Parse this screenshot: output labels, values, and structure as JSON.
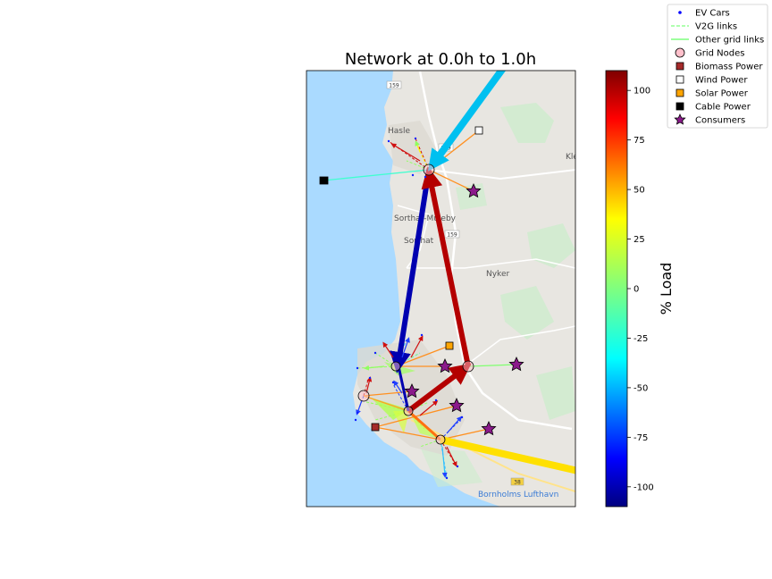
{
  "title": "Network at 0.0h to 1.0h",
  "colorbar": {
    "label": "% Load",
    "min": -110,
    "max": 110,
    "ticks": [
      "100",
      "75",
      "50",
      "25",
      "0",
      "-25",
      "-50",
      "-75",
      "-100"
    ],
    "tick_values": [
      100,
      75,
      50,
      25,
      0,
      -25,
      -50,
      -75,
      -100
    ],
    "colormap": "jet"
  },
  "legend": [
    {
      "label": "EV Cars",
      "icon": "blue-dot-marker",
      "color": "#0000ff"
    },
    {
      "label": "V2G links",
      "icon": "dashed-line-marker",
      "color": "#7fff7f"
    },
    {
      "label": "Other grid links",
      "icon": "solid-line-marker",
      "color": "#7fff7f"
    },
    {
      "label": "Grid Nodes",
      "icon": "circle-marker",
      "color": "#ffc0cb"
    },
    {
      "label": "Biomass Power",
      "icon": "square-marker",
      "color": "#a52a2a"
    },
    {
      "label": "Wind Power",
      "icon": "square-marker",
      "color": "#ffffff"
    },
    {
      "label": "Solar Power",
      "icon": "square-marker",
      "color": "#ffa500"
    },
    {
      "label": "Cable Power",
      "icon": "square-marker",
      "color": "#000000"
    },
    {
      "label": "Consumers",
      "icon": "star-marker",
      "color": "#800080"
    }
  ],
  "map_labels": {
    "hasle": "Hasle",
    "sorthat_muleby": "Sorthat-Muleby",
    "sorthat": "Sorthat",
    "nyker": "Nyker",
    "kl": "Kle",
    "airport": "Bornholms Lufthavn",
    "road_159_a": "159",
    "road_159_b": "159",
    "road_159_c": "159",
    "road_38": "38"
  },
  "chart_data": {
    "type": "network-map",
    "title": "Network at 0.0h to 1.0h",
    "colorbar_label": "% Load",
    "colorbar_range": [
      -110,
      110
    ],
    "major_links_load_percent": [
      {
        "from": "Hasle node",
        "to": "Rønne north node",
        "load": -100
      },
      {
        "from": "Rønne east node",
        "to": "Hasle node",
        "load": 100
      },
      {
        "from": "Rønne center node",
        "to": "Rønne east node",
        "load": 100
      },
      {
        "from": "Hasle node",
        "to": "north (off-map)",
        "load": -50
      },
      {
        "from": "Rønne south node",
        "to": "east (off-map)",
        "load": 35
      }
    ]
  }
}
